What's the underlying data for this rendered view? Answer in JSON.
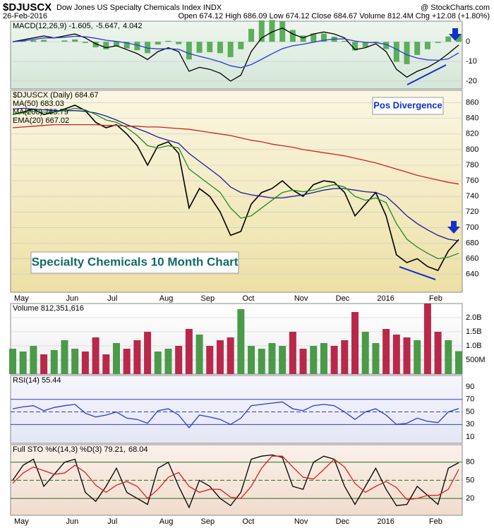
{
  "header": {
    "symbol": "$DJUSCX",
    "name": "Dow Jones US Specialty Chemicals Index INDX",
    "site": "@ StockCharts.com",
    "date": "26-Feb-2016",
    "quote": "Open 674.12 High 686.09 Low 674.12 Close 684.67 Volume 812.4M Chg +12.08 (+1.80%)"
  },
  "chart_data": [
    {
      "type": "line",
      "ylim": [
        -24,
        10.5
      ],
      "yticks": [
        0,
        -10,
        -20
      ],
      "grid": true,
      "series": [
        {
          "name": "MACD(12,26,9) -1.605,",
          "color": "#000000",
          "values": [
            0,
            1,
            2,
            3,
            2,
            3,
            4,
            2,
            -1,
            -3,
            -2,
            -4,
            -6,
            -9,
            -5,
            -3,
            -5,
            -15,
            -13,
            -14,
            -16,
            -20,
            -17,
            -5,
            2,
            5,
            7,
            4,
            2,
            4,
            5,
            4,
            2,
            -4,
            -3,
            -1,
            -5,
            -14,
            -18,
            -15,
            -13,
            -10,
            -6,
            -1.605
          ]
        },
        {
          "name": "-5.647,",
          "color": "#2a3ad8",
          "values": [
            0,
            0.5,
            1.2,
            2,
            2,
            2.3,
            2.8,
            2.6,
            1.8,
            0.8,
            0.2,
            -0.6,
            -1.7,
            -3.2,
            -3.6,
            -3.5,
            -3.8,
            -6,
            -7.4,
            -8.7,
            -10.2,
            -12.2,
            -13.2,
            -11.6,
            -8.9,
            -6.1,
            -3.5,
            -2,
            -1.2,
            -0.2,
            0.8,
            1.4,
            1.5,
            0.4,
            -0.3,
            -0.4,
            -1.3,
            -3.8,
            -6.6,
            -8.3,
            -9.2,
            -9.4,
            -8.7,
            -5.647
          ]
        },
        {
          "name": "4.042",
          "color": "#5cae5c",
          "kind": "histogram",
          "values": [
            0,
            0.5,
            0.8,
            1,
            0,
            0.7,
            1.2,
            -0.6,
            -2.8,
            -3.8,
            -2.2,
            -3.4,
            -4.3,
            -5.8,
            -1.4,
            0.5,
            -1.2,
            -9,
            -5.6,
            -5.3,
            -5.8,
            -7.8,
            -3.8,
            6.6,
            10.9,
            11.1,
            10.5,
            6,
            3.2,
            4.2,
            4.2,
            2.6,
            0.5,
            -4.4,
            -2.7,
            -0.6,
            -3.7,
            -10.2,
            -11.4,
            -6.7,
            -3.8,
            -0.6,
            2.7,
            4.042
          ]
        }
      ]
    },
    {
      "type": "line",
      "ylim": [
        617,
        876
      ],
      "yticks": [
        640,
        660,
        680,
        700,
        720,
        740,
        760,
        780,
        800,
        820,
        840,
        860
      ],
      "grid": true,
      "categories": [
        "May",
        null,
        null,
        null,
        null,
        "Jun",
        null,
        null,
        null,
        "Jul",
        null,
        null,
        null,
        null,
        "Aug",
        null,
        null,
        null,
        "Sep",
        null,
        null,
        null,
        "Oct",
        null,
        null,
        null,
        null,
        "Nov",
        null,
        null,
        null,
        "Dec",
        null,
        null,
        null,
        "2016",
        null,
        null,
        null,
        null,
        "Feb",
        null,
        null,
        null
      ],
      "annotations": [
        "Pos Divergence",
        "Specialty Chemicals 10 Month Chart"
      ],
      "series": [
        {
          "name": "$DJUSCX (Daily) 684.67",
          "color": "#000000",
          "values": [
            845,
            848,
            852,
            845,
            848,
            852,
            857,
            850,
            835,
            828,
            832,
            820,
            805,
            780,
            805,
            810,
            795,
            725,
            750,
            740,
            720,
            690,
            695,
            730,
            745,
            750,
            760,
            748,
            740,
            755,
            760,
            758,
            745,
            715,
            730,
            745,
            715,
            665,
            655,
            660,
            650,
            645,
            670,
            684.67
          ]
        },
        {
          "name": "MA(50) 683.03",
          "color": "#1a1a9a",
          "values": [
            852,
            853,
            852,
            851,
            850,
            850,
            850,
            849,
            847,
            843,
            838,
            832,
            827,
            822,
            816,
            812,
            808,
            795,
            785,
            775,
            765,
            752,
            745,
            742,
            740,
            738,
            738,
            740,
            742,
            745,
            748,
            750,
            750,
            748,
            746,
            745,
            740,
            728,
            715,
            705,
            697,
            690,
            685,
            683.03
          ]
        },
        {
          "name": "MA(200) 755.79",
          "color": "#d02020",
          "values": [
            828,
            829,
            830,
            831,
            832,
            832,
            832,
            832,
            832,
            831,
            831,
            830,
            830,
            829,
            829,
            828,
            827,
            826,
            824,
            822,
            820,
            818,
            815,
            812,
            810,
            807,
            805,
            803,
            800,
            798,
            796,
            794,
            792,
            789,
            786,
            783,
            779,
            775,
            771,
            767,
            764,
            761,
            758,
            755.79
          ]
        },
        {
          "name": "EMA(20) 667.02",
          "color": "#1f8a1f",
          "values": [
            845,
            847,
            849,
            848,
            848,
            850,
            853,
            851,
            845,
            838,
            835,
            828,
            818,
            805,
            802,
            805,
            802,
            775,
            765,
            755,
            745,
            725,
            712,
            715,
            725,
            735,
            745,
            748,
            746,
            748,
            752,
            755,
            752,
            740,
            735,
            738,
            732,
            705,
            685,
            675,
            667,
            660,
            662,
            667.02
          ]
        }
      ]
    },
    {
      "type": "bar",
      "ylim": [
        0,
        2500000000
      ],
      "yticks": [
        {
          "value": 2000000000,
          "label": "2.0B"
        },
        {
          "value": 1500000000,
          "label": "1.5B"
        },
        {
          "value": 1000000000,
          "label": "1.0B"
        },
        {
          "value": 500000000,
          "label": "500M"
        }
      ],
      "grid": true,
      "up_color": "#4a9a4a",
      "down_color": "#b8284a",
      "series": [
        {
          "name": "Volume 812,351,616",
          "values": [
            900000000,
            800000000,
            1000000000,
            700000000,
            850000000,
            1200000000,
            900000000,
            800000000,
            1300000000,
            700000000,
            1100000000,
            900000000,
            1200000000,
            1500000000,
            800000000,
            900000000,
            1000000000,
            1600000000,
            1400000000,
            1000000000,
            1200000000,
            1300000000,
            2300000000,
            1000000000,
            900000000,
            1100000000,
            1000000000,
            1500000000,
            900000000,
            1000000000,
            1100000000,
            1000000000,
            1200000000,
            2200000000,
            1500000000,
            1100000000,
            1600000000,
            1400000000,
            1300000000,
            1200000000,
            2500000000,
            1500000000,
            1200000000,
            812351616
          ]
        }
      ]
    },
    {
      "type": "line",
      "ylim": [
        0,
        108
      ],
      "yticks": [
        90,
        70,
        50,
        30,
        10
      ],
      "ref_lines": [
        70,
        50,
        30
      ],
      "ref_color": "#3040c0",
      "series": [
        {
          "name": "RSI(14) 55.44",
          "color": "#2a3ad8",
          "values": [
            55,
            58,
            60,
            52,
            57,
            60,
            62,
            48,
            42,
            45,
            50,
            40,
            38,
            32,
            52,
            55,
            45,
            25,
            45,
            42,
            38,
            30,
            40,
            60,
            62,
            64,
            66,
            55,
            52,
            60,
            62,
            60,
            50,
            38,
            50,
            55,
            45,
            30,
            32,
            40,
            35,
            33,
            50,
            55.44
          ]
        }
      ]
    },
    {
      "type": "line",
      "ylim": [
        -8,
        109
      ],
      "yticks": [
        80,
        50,
        20
      ],
      "ref_lines": [
        80,
        50,
        20
      ],
      "ref_color": "#207020",
      "categories": [
        "May",
        null,
        null,
        null,
        null,
        "Jun",
        null,
        null,
        null,
        "Jul",
        null,
        null,
        null,
        null,
        "Aug",
        null,
        null,
        null,
        "Sep",
        null,
        null,
        null,
        "Oct",
        null,
        null,
        null,
        null,
        "Nov",
        null,
        null,
        null,
        "Dec",
        null,
        null,
        null,
        "2016",
        null,
        null,
        null,
        null,
        "Feb",
        null,
        null,
        null
      ],
      "series": [
        {
          "name": "Full STO %K(14,3) %D(3) 79.21,",
          "color": "#000000",
          "values": [
            50,
            75,
            85,
            40,
            60,
            80,
            85,
            30,
            15,
            40,
            70,
            30,
            20,
            10,
            70,
            80,
            40,
            5,
            50,
            40,
            20,
            8,
            30,
            85,
            90,
            92,
            88,
            40,
            35,
            80,
            90,
            85,
            40,
            10,
            40,
            70,
            35,
            8,
            10,
            40,
            25,
            10,
            70,
            79.21
          ]
        },
        {
          "name": "68.04",
          "color": "#e02020",
          "values": [
            45,
            62,
            72,
            66,
            60,
            62,
            75,
            63,
            42,
            30,
            42,
            48,
            40,
            20,
            35,
            55,
            63,
            40,
            30,
            35,
            35,
            22,
            20,
            40,
            70,
            90,
            90,
            72,
            55,
            52,
            68,
            85,
            72,
            45,
            30,
            40,
            48,
            38,
            18,
            20,
            25,
            25,
            35,
            68.04
          ]
        }
      ]
    }
  ]
}
